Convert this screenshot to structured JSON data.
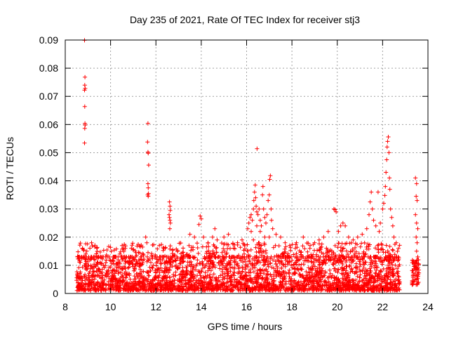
{
  "chart_data": {
    "type": "scatter",
    "title": "Day 235 of 2021, Rate Of TEC Index for receiver stj3",
    "xlabel": "GPS time / hours",
    "ylabel": "ROTI / TECUs",
    "xlim": [
      8,
      24
    ],
    "ylim": [
      0,
      0.09
    ],
    "x_ticks": [
      8,
      10,
      12,
      14,
      16,
      18,
      20,
      22,
      24
    ],
    "y_ticks": [
      0,
      0.01,
      0.02,
      0.03,
      0.04,
      0.05,
      0.06,
      0.07,
      0.08,
      0.09
    ],
    "x_tick_labels": [
      "8",
      "10",
      "12",
      "14",
      "16",
      "18",
      "20",
      "22",
      "24"
    ],
    "y_tick_labels": [
      "0",
      "0.01",
      "0.02",
      "0.03",
      "0.04",
      "0.05",
      "0.06",
      "0.07",
      "0.08",
      "0.09"
    ],
    "grid": true,
    "marker": "+",
    "marker_color": "#ff0000",
    "series": [
      {
        "name": "ROTI",
        "background_band": {
          "x_range": [
            8.5,
            22.75
          ],
          "y_range": [
            0.001,
            0.013
          ]
        },
        "late_band": {
          "x_range": [
            23.3,
            23.6
          ],
          "y_range": [
            0.003,
            0.012
          ]
        },
        "points": [
          [
            8.85,
            0.0899
          ],
          [
            8.87,
            0.0768
          ],
          [
            8.86,
            0.074
          ],
          [
            8.88,
            0.0728
          ],
          [
            8.85,
            0.0722
          ],
          [
            8.86,
            0.0664
          ],
          [
            8.87,
            0.0604
          ],
          [
            8.88,
            0.0598
          ],
          [
            8.86,
            0.0586
          ],
          [
            8.85,
            0.0534
          ],
          [
            8.8,
            0.0155
          ],
          [
            8.9,
            0.014
          ],
          [
            8.95,
            0.015
          ],
          [
            11.65,
            0.0604
          ],
          [
            11.63,
            0.0538
          ],
          [
            11.65,
            0.0502
          ],
          [
            11.66,
            0.0498
          ],
          [
            11.68,
            0.0456
          ],
          [
            11.65,
            0.039
          ],
          [
            11.66,
            0.0375
          ],
          [
            11.67,
            0.0355
          ],
          [
            11.64,
            0.035
          ],
          [
            11.66,
            0.0345
          ],
          [
            11.55,
            0.02
          ],
          [
            11.6,
            0.018
          ],
          [
            12.6,
            0.0325
          ],
          [
            12.62,
            0.031
          ],
          [
            12.63,
            0.0295
          ],
          [
            12.58,
            0.028
          ],
          [
            12.6,
            0.027
          ],
          [
            12.62,
            0.026
          ],
          [
            12.64,
            0.025
          ],
          [
            12.61,
            0.023
          ],
          [
            12.15,
            0.017
          ],
          [
            12.35,
            0.016
          ],
          [
            13.5,
            0.021
          ],
          [
            13.7,
            0.02
          ],
          [
            13.9,
            0.0245
          ],
          [
            13.95,
            0.0275
          ],
          [
            14.0,
            0.0265
          ],
          [
            14.1,
            0.02
          ],
          [
            14.3,
            0.018
          ],
          [
            14.5,
            0.02
          ],
          [
            14.6,
            0.023
          ],
          [
            14.7,
            0.019
          ],
          [
            15.0,
            0.02
          ],
          [
            15.2,
            0.021
          ],
          [
            15.4,
            0.0175
          ],
          [
            15.6,
            0.018
          ],
          [
            15.8,
            0.019
          ],
          [
            16.05,
            0.023
          ],
          [
            16.1,
            0.025
          ],
          [
            16.15,
            0.027
          ],
          [
            16.2,
            0.028
          ],
          [
            16.25,
            0.026
          ],
          [
            16.3,
            0.03
          ],
          [
            16.32,
            0.033
          ],
          [
            16.35,
            0.036
          ],
          [
            16.38,
            0.0385
          ],
          [
            16.4,
            0.034
          ],
          [
            16.42,
            0.031
          ],
          [
            16.45,
            0.029
          ],
          [
            16.46,
            0.0514
          ],
          [
            16.5,
            0.028
          ],
          [
            16.55,
            0.03
          ],
          [
            16.6,
            0.026
          ],
          [
            16.65,
            0.024
          ],
          [
            16.7,
            0.035
          ],
          [
            16.72,
            0.038
          ],
          [
            16.75,
            0.03
          ],
          [
            16.8,
            0.027
          ],
          [
            16.85,
            0.025
          ],
          [
            16.9,
            0.028
          ],
          [
            16.95,
            0.033
          ],
          [
            17.0,
            0.035
          ],
          [
            17.02,
            0.0405
          ],
          [
            17.05,
            0.0418
          ],
          [
            17.08,
            0.03
          ],
          [
            17.1,
            0.026
          ],
          [
            17.15,
            0.023
          ],
          [
            17.3,
            0.021
          ],
          [
            17.5,
            0.02
          ],
          [
            17.7,
            0.018
          ],
          [
            17.9,
            0.017
          ],
          [
            16.2,
            0.022
          ],
          [
            16.45,
            0.024
          ],
          [
            16.6,
            0.022
          ],
          [
            16.8,
            0.02
          ],
          [
            17.0,
            0.02
          ],
          [
            16.3,
            0.019
          ],
          [
            16.55,
            0.018
          ],
          [
            18.2,
            0.018
          ],
          [
            18.5,
            0.02
          ],
          [
            18.8,
            0.017
          ],
          [
            19.0,
            0.018
          ],
          [
            19.2,
            0.019
          ],
          [
            19.4,
            0.02
          ],
          [
            19.6,
            0.022
          ],
          [
            19.85,
            0.03
          ],
          [
            19.9,
            0.0298
          ],
          [
            19.95,
            0.029
          ],
          [
            20.05,
            0.022
          ],
          [
            20.15,
            0.024
          ],
          [
            20.25,
            0.025
          ],
          [
            20.35,
            0.024
          ],
          [
            20.5,
            0.02
          ],
          [
            20.7,
            0.019
          ],
          [
            20.9,
            0.02
          ],
          [
            21.1,
            0.021
          ],
          [
            21.3,
            0.023
          ],
          [
            21.4,
            0.028
          ],
          [
            21.45,
            0.0325
          ],
          [
            21.5,
            0.036
          ],
          [
            21.55,
            0.03
          ],
          [
            21.6,
            0.026
          ],
          [
            21.7,
            0.024
          ],
          [
            21.8,
            0.036
          ],
          [
            21.85,
            0.022
          ],
          [
            21.9,
            0.025
          ],
          [
            22.0,
            0.03
          ],
          [
            22.05,
            0.032
          ],
          [
            22.1,
            0.0348
          ],
          [
            22.12,
            0.038
          ],
          [
            22.15,
            0.043
          ],
          [
            22.18,
            0.0475
          ],
          [
            22.2,
            0.052
          ],
          [
            22.22,
            0.054
          ],
          [
            22.25,
            0.0556
          ],
          [
            22.28,
            0.05
          ],
          [
            22.3,
            0.041
          ],
          [
            22.32,
            0.037
          ],
          [
            22.35,
            0.03
          ],
          [
            22.4,
            0.027
          ],
          [
            22.45,
            0.024
          ],
          [
            22.5,
            0.02
          ],
          [
            22.6,
            0.018
          ],
          [
            22.7,
            0.016
          ],
          [
            23.45,
            0.041
          ],
          [
            23.5,
            0.039
          ],
          [
            23.48,
            0.0345
          ],
          [
            23.52,
            0.033
          ],
          [
            23.45,
            0.028
          ],
          [
            23.5,
            0.025
          ],
          [
            23.55,
            0.023
          ],
          [
            23.48,
            0.02
          ],
          [
            23.52,
            0.018
          ],
          [
            23.5,
            0.015
          ],
          [
            23.55,
            0.013
          ]
        ]
      }
    ]
  }
}
